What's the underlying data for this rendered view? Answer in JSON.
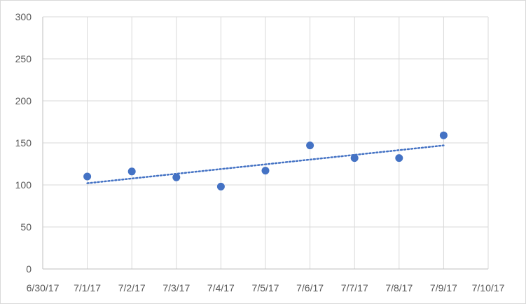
{
  "chart_data": {
    "type": "scatter",
    "title": "",
    "xlabel": "",
    "ylabel": "",
    "x_ticks": [
      "6/30/17",
      "7/1/17",
      "7/2/17",
      "7/3/17",
      "7/4/17",
      "7/5/17",
      "7/6/17",
      "7/7/17",
      "7/8/17",
      "7/9/17",
      "7/10/17"
    ],
    "y_ticks": [
      "0",
      "50",
      "100",
      "150",
      "200",
      "250",
      "300"
    ],
    "xlim": [
      "6/30/17",
      "7/10/17"
    ],
    "ylim": [
      0,
      300
    ],
    "grid": true,
    "legend": "none",
    "series": [
      {
        "x": [
          "7/1/17",
          "7/2/17",
          "7/3/17",
          "7/4/17",
          "7/5/17",
          "7/6/17",
          "7/7/17",
          "7/8/17",
          "7/9/17"
        ],
        "y": [
          110,
          116,
          109,
          98,
          117,
          147,
          132,
          132,
          159
        ],
        "color": "#4472c4"
      }
    ],
    "trendline": {
      "type": "linear",
      "style": "dotted",
      "color": "#4472c4",
      "from": {
        "x": "7/1/17",
        "y": 102
      },
      "to": {
        "x": "7/9/17",
        "y": 147
      }
    }
  }
}
